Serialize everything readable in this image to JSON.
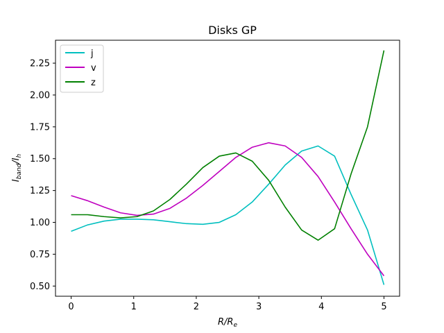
{
  "chart_data": {
    "type": "line",
    "title": "Disks GP",
    "xlabel_main": "R/R",
    "xlabel_sub": "e",
    "ylabel_main": "I",
    "ylabel_sub1": "band",
    "ylabel_slash": "/I",
    "ylabel_sub2": "h",
    "xlim": [
      -0.25,
      5.25
    ],
    "ylim": [
      0.42,
      2.43
    ],
    "xticks": [
      0,
      1,
      2,
      3,
      4,
      5
    ],
    "xtick_labels": [
      "0",
      "1",
      "2",
      "3",
      "4",
      "5"
    ],
    "yticks": [
      0.5,
      0.75,
      1.0,
      1.25,
      1.5,
      1.75,
      2.0,
      2.25
    ],
    "ytick_labels": [
      "0.50",
      "0.75",
      "1.00",
      "1.25",
      "1.50",
      "1.75",
      "2.00",
      "2.25"
    ],
    "grid": false,
    "legend_position": "upper-left",
    "x": [
      0,
      0.263,
      0.526,
      0.789,
      1.053,
      1.316,
      1.579,
      1.842,
      2.105,
      2.368,
      2.632,
      2.895,
      3.158,
      3.421,
      3.684,
      3.947,
      4.211,
      4.474,
      4.737,
      5.0
    ],
    "series": [
      {
        "name": "j",
        "color": "#00bfbf",
        "values": [
          0.93,
          0.98,
          1.01,
          1.025,
          1.025,
          1.02,
          1.005,
          0.99,
          0.985,
          1.0,
          1.06,
          1.16,
          1.3,
          1.45,
          1.56,
          1.6,
          1.52,
          1.22,
          0.94,
          0.51
        ]
      },
      {
        "name": "v",
        "color": "#bf00bf",
        "values": [
          1.21,
          1.17,
          1.12,
          1.075,
          1.055,
          1.065,
          1.11,
          1.19,
          1.29,
          1.4,
          1.51,
          1.59,
          1.625,
          1.6,
          1.51,
          1.36,
          1.16,
          0.95,
          0.75,
          0.58
        ]
      },
      {
        "name": "z",
        "color": "#008000",
        "values": [
          1.06,
          1.06,
          1.045,
          1.035,
          1.045,
          1.09,
          1.18,
          1.3,
          1.43,
          1.52,
          1.545,
          1.48,
          1.33,
          1.12,
          0.94,
          0.86,
          0.95,
          1.38,
          1.75,
          2.35
        ]
      }
    ]
  }
}
